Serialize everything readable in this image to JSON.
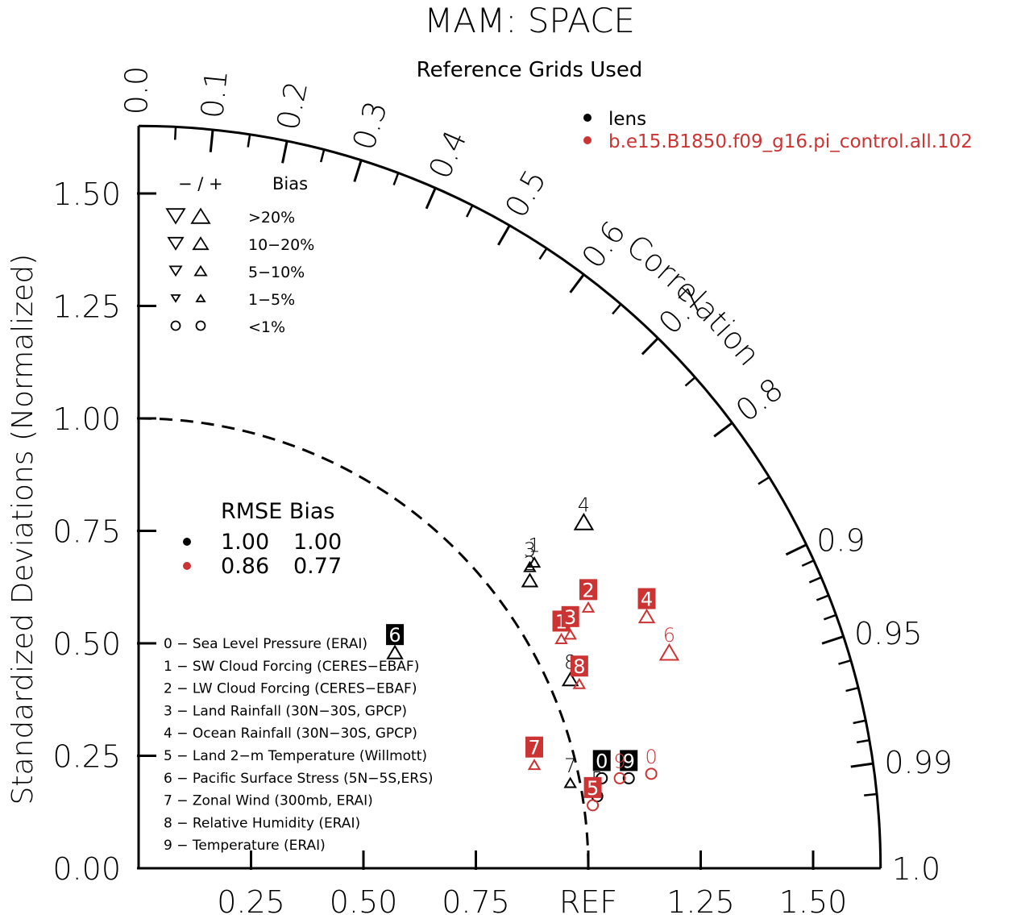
{
  "title": "MAM: SPACE",
  "subtitle": "Reference Grids Used",
  "colors": {
    "lens": "#000000",
    "control": "#cc3333"
  },
  "chart_data": {
    "type": "scatter",
    "subtype": "taylor-diagram",
    "title": "MAM: SPACE",
    "subtitle": "Reference Grids Used",
    "ylabel": "Standardized Deviations (Normalized)",
    "correlation_label": "Correlation",
    "ref_label": "REF",
    "y_ticks": [
      "0.00",
      "0.25",
      "0.50",
      "0.75",
      "1.00",
      "1.25",
      "1.50"
    ],
    "x_ticks": [
      "0.25",
      "0.50",
      "0.75",
      "1.25",
      "1.50"
    ],
    "correlation_ticks": [
      "0.0",
      "0.1",
      "0.2",
      "0.3",
      "0.4",
      "0.5",
      "0.6",
      "0.7",
      "0.8",
      "0.9",
      "0.95",
      "0.99",
      "1.0"
    ],
    "radius_max": 1.65,
    "reference_std": 1.0,
    "legend_series": [
      {
        "name": "lens",
        "color": "#000000"
      },
      {
        "name": "b.e15.B1850.f09_g16.pi_control.all.102",
        "color": "#cc3333"
      }
    ],
    "bias_legend": {
      "header_signs": "− / +",
      "header_label": "Bias",
      "rows": [
        ">20%",
        "10−20%",
        "5−10%",
        "1−5%",
        "<1%"
      ]
    },
    "rmse_table": {
      "header": "RMSE Bias",
      "rows": [
        {
          "rmse": "1.00",
          "bias": "1.00",
          "color": "#000000"
        },
        {
          "rmse": "0.86",
          "bias": "0.77",
          "color": "#cc3333"
        }
      ]
    },
    "variables": [
      "0 − Sea Level Pressure (ERAI)",
      "1 − SW Cloud Forcing (CERES−EBAF)",
      "2 − LW Cloud Forcing (CERES−EBAF)",
      "3 − Land Rainfall (30N−30S, GPCP)",
      "4 − Ocean Rainfall (30N−30S, GPCP)",
      "5 − Land 2−m Temperature (Willmott)",
      "6 − Pacific Surface Stress (5N−5S,ERS)",
      "7 − Zonal Wind (300mb, ERAI)",
      "8 − Relative Humidity (ERAI)",
      "9 − Temperature (ERAI)"
    ],
    "series": [
      {
        "name": "lens",
        "points": [
          {
            "label": "0",
            "x": 1.03,
            "y": 0.2,
            "bias": "circle",
            "boxed": true
          },
          {
            "label": "1",
            "x": 0.88,
            "y": 0.68,
            "bias": "up-small"
          },
          {
            "label": "2",
            "x": 0.87,
            "y": 0.64,
            "bias": "up-medium"
          },
          {
            "label": "3",
            "x": 0.87,
            "y": 0.67,
            "bias": "up-small"
          },
          {
            "label": "4",
            "x": 0.99,
            "y": 0.77,
            "bias": "up-large"
          },
          {
            "label": "5",
            "x": 1.02,
            "y": 0.16,
            "bias": "circle"
          },
          {
            "label": "6",
            "x": 0.57,
            "y": 0.48,
            "bias": "up-medium",
            "boxed": true
          },
          {
            "label": "7",
            "x": 0.96,
            "y": 0.19,
            "bias": "up-small"
          },
          {
            "label": "8",
            "x": 0.96,
            "y": 0.42,
            "bias": "up-medium"
          },
          {
            "label": "9",
            "x": 1.09,
            "y": 0.2,
            "bias": "circle",
            "boxed": true
          }
        ]
      },
      {
        "name": "b.e15.B1850.f09_g16.pi_control.all.102",
        "points": [
          {
            "label": "0",
            "x": 1.14,
            "y": 0.21,
            "bias": "circle"
          },
          {
            "label": "1",
            "x": 0.94,
            "y": 0.51,
            "bias": "up-small",
            "boxed": true
          },
          {
            "label": "2",
            "x": 1.0,
            "y": 0.58,
            "bias": "up-small",
            "boxed": true
          },
          {
            "label": "3",
            "x": 0.96,
            "y": 0.52,
            "bias": "up-small",
            "boxed": true
          },
          {
            "label": "4",
            "x": 1.13,
            "y": 0.56,
            "bias": "up-medium",
            "boxed": true
          },
          {
            "label": "5",
            "x": 1.01,
            "y": 0.14,
            "bias": "circle",
            "boxed": true
          },
          {
            "label": "6",
            "x": 1.18,
            "y": 0.48,
            "bias": "up-large"
          },
          {
            "label": "7",
            "x": 0.88,
            "y": 0.23,
            "bias": "up-small",
            "boxed": true
          },
          {
            "label": "8",
            "x": 0.98,
            "y": 0.41,
            "bias": "up-small",
            "boxed": true
          },
          {
            "label": "9",
            "x": 1.07,
            "y": 0.2,
            "bias": "circle"
          }
        ]
      }
    ]
  }
}
